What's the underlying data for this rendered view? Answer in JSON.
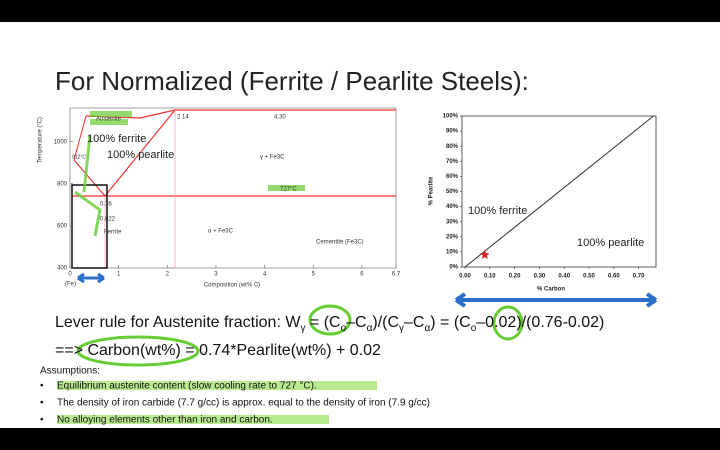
{
  "title": "For Normalized (Ferrite / Pearlite Steels):",
  "phase_diagram": {
    "y_label": "Temperature (°C)",
    "x_label": "Composition (wt% C)",
    "xlim": [
      0,
      6.7
    ],
    "ylim": [
      400,
      1160
    ],
    "xticks": [
      0,
      1,
      2,
      3,
      4,
      5,
      6,
      6.7
    ],
    "yticks": [
      400,
      600,
      800,
      1000
    ],
    "labels": {
      "austenite": "Austenite",
      "c214": "2.14",
      "c430": "4.30",
      "t912": "912°C",
      "gamma_fe3c": "γ + Fe3C",
      "t727": "727°C",
      "c076": "0.76",
      "c0022": "0.022",
      "ferrite": "Ferrite",
      "alpha_fe3c": "α + Fe3C",
      "cementite": "Cementite (Fe3C)",
      "fe": "(Fe)"
    },
    "annotations": [
      "100% ferrite",
      "100% pearlite"
    ]
  },
  "pearlite_chart": {
    "type": "line",
    "x_label": "% Carbon",
    "y_label": "% Pearlite",
    "x": [
      0,
      0.76
    ],
    "values": [
      0,
      100
    ],
    "color": "#333333",
    "xlim": [
      0,
      0.77
    ],
    "ylim": [
      0,
      100
    ],
    "xticks": [
      {
        "value": 0,
        "label": "0.00"
      },
      {
        "value": 0.1,
        "label": "0.10"
      },
      {
        "value": 0.2,
        "label": "0.20"
      },
      {
        "value": 0.3,
        "label": "0.30"
      },
      {
        "value": 0.4,
        "label": "0.40"
      },
      {
        "value": 0.5,
        "label": "0.50"
      },
      {
        "value": 0.6,
        "label": "0.60"
      },
      {
        "value": 0.7,
        "label": "0.70"
      }
    ],
    "yticks": [
      {
        "value": 0,
        "label": "0%"
      },
      {
        "value": 10,
        "label": "10%"
      },
      {
        "value": 20,
        "label": "20%"
      },
      {
        "value": 30,
        "label": "30%"
      },
      {
        "value": 40,
        "label": "40%"
      },
      {
        "value": 50,
        "label": "50%"
      },
      {
        "value": 60,
        "label": "60%"
      },
      {
        "value": 70,
        "label": "70%"
      },
      {
        "value": 80,
        "label": "80%"
      },
      {
        "value": 90,
        "label": "90%"
      },
      {
        "value": 100,
        "label": "100%"
      }
    ],
    "marker": {
      "x": 0.08,
      "y": 8,
      "color": "#e02020"
    },
    "annotations": [
      "100% ferrite",
      "100% pearlite"
    ]
  },
  "lever_rule": [
    "Lever rule for Austenite fraction: W",
    "γ",
    " = (C",
    "o",
    "–C",
    "α",
    ")/(C",
    "γ",
    "–C",
    "α",
    ") = (C",
    "o",
    "–0.02)/(0.76-0.02)"
  ],
  "carbon_formula": "==> Carbon(wt%) = 0.74*Pearlite(wt%) + 0.02",
  "assumptions": {
    "heading": "Assumptions:",
    "items": [
      "Equilibrium austenite content (slow cooling rate to 727 °C).",
      "The density of iron carbide (7.7 g/cc) is approx. equal to the density of iron (7.9 g/cc)",
      "No alloying elements other than iron and carbon."
    ]
  }
}
